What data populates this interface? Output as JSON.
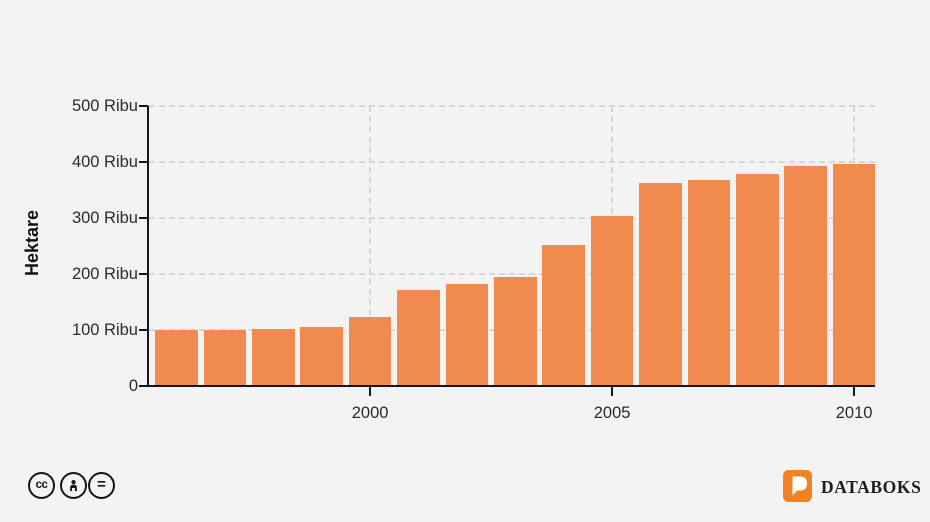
{
  "chart_data": {
    "type": "bar",
    "x": [
      1996,
      1997,
      1998,
      1999,
      2000,
      2001,
      2002,
      2003,
      2004,
      2005,
      2006,
      2007,
      2008,
      2009,
      2010
    ],
    "values": [
      100,
      100,
      102,
      105,
      123,
      172,
      182,
      194,
      252,
      303,
      362,
      368,
      379,
      392,
      397
    ],
    "unit": "Ribu Hektare",
    "title": "",
    "xlabel": "",
    "ylabel": "Hektare",
    "ylim": [
      0,
      500
    ],
    "yticks": [
      500,
      400,
      300,
      200,
      100,
      0
    ],
    "ytick_labels": [
      "500 Ribu",
      "400 Ribu",
      "300 Ribu",
      "200 Ribu",
      "100 Ribu",
      "0"
    ],
    "xticks": [
      {
        "label": "2000",
        "bar_index": 4
      },
      {
        "label": "2005",
        "bar_index": 9
      },
      {
        "label": "2010",
        "bar_index": 14
      }
    ],
    "grid": "dashed, horizontal and vertical at labeled ticks",
    "legend": "none",
    "bar_color": "#F08A4E",
    "background_color": "#F4F3F4"
  },
  "footer": {
    "license": {
      "cc_label": "cc",
      "nd_label": "=",
      "icons": [
        "creative-commons",
        "attribution",
        "no-derivatives"
      ]
    },
    "brand_name": "DATABOKS",
    "brand_color": "#F28121"
  }
}
